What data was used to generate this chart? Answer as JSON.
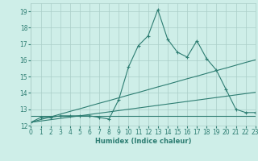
{
  "xlabel": "Humidex (Indice chaleur)",
  "x_values": [
    0,
    1,
    2,
    3,
    4,
    5,
    6,
    7,
    8,
    9,
    10,
    11,
    12,
    13,
    14,
    15,
    16,
    17,
    18,
    19,
    20,
    21,
    22,
    23
  ],
  "main_line": [
    12.2,
    12.5,
    12.5,
    12.6,
    12.6,
    12.6,
    12.6,
    12.5,
    12.4,
    13.6,
    15.6,
    16.9,
    17.5,
    19.1,
    17.3,
    16.5,
    16.2,
    17.2,
    16.1,
    15.4,
    14.2,
    13.0,
    12.8,
    12.8
  ],
  "linear1": [
    12.2,
    12.37,
    12.53,
    12.7,
    12.87,
    13.03,
    13.2,
    13.37,
    13.53,
    13.7,
    13.87,
    14.03,
    14.2,
    14.37,
    14.53,
    14.7,
    14.87,
    15.03,
    15.2,
    15.37,
    15.53,
    15.7,
    15.87,
    16.03
  ],
  "linear2": [
    12.2,
    12.28,
    12.36,
    12.44,
    12.52,
    12.6,
    12.68,
    12.76,
    12.84,
    12.92,
    13.0,
    13.08,
    13.16,
    13.24,
    13.32,
    13.4,
    13.48,
    13.56,
    13.64,
    13.72,
    13.8,
    13.88,
    13.96,
    14.04
  ],
  "flat_line": [
    12.6,
    12.6,
    12.6,
    12.6,
    12.6,
    12.6,
    12.6,
    12.6,
    12.6,
    12.6,
    12.6,
    12.6,
    12.6,
    12.6,
    12.6,
    12.6,
    12.6,
    12.6,
    12.6,
    12.6,
    12.6,
    12.6,
    12.6,
    12.6
  ],
  "line_color": "#2d7d72",
  "bg_color": "#ceeee8",
  "grid_color": "#aacdc8",
  "ylim": [
    12.0,
    19.5
  ],
  "xlim": [
    0,
    23
  ],
  "yticks": [
    12,
    13,
    14,
    15,
    16,
    17,
    18,
    19
  ],
  "xticks": [
    0,
    1,
    2,
    3,
    4,
    5,
    6,
    7,
    8,
    9,
    10,
    11,
    12,
    13,
    14,
    15,
    16,
    17,
    18,
    19,
    20,
    21,
    22,
    23
  ]
}
